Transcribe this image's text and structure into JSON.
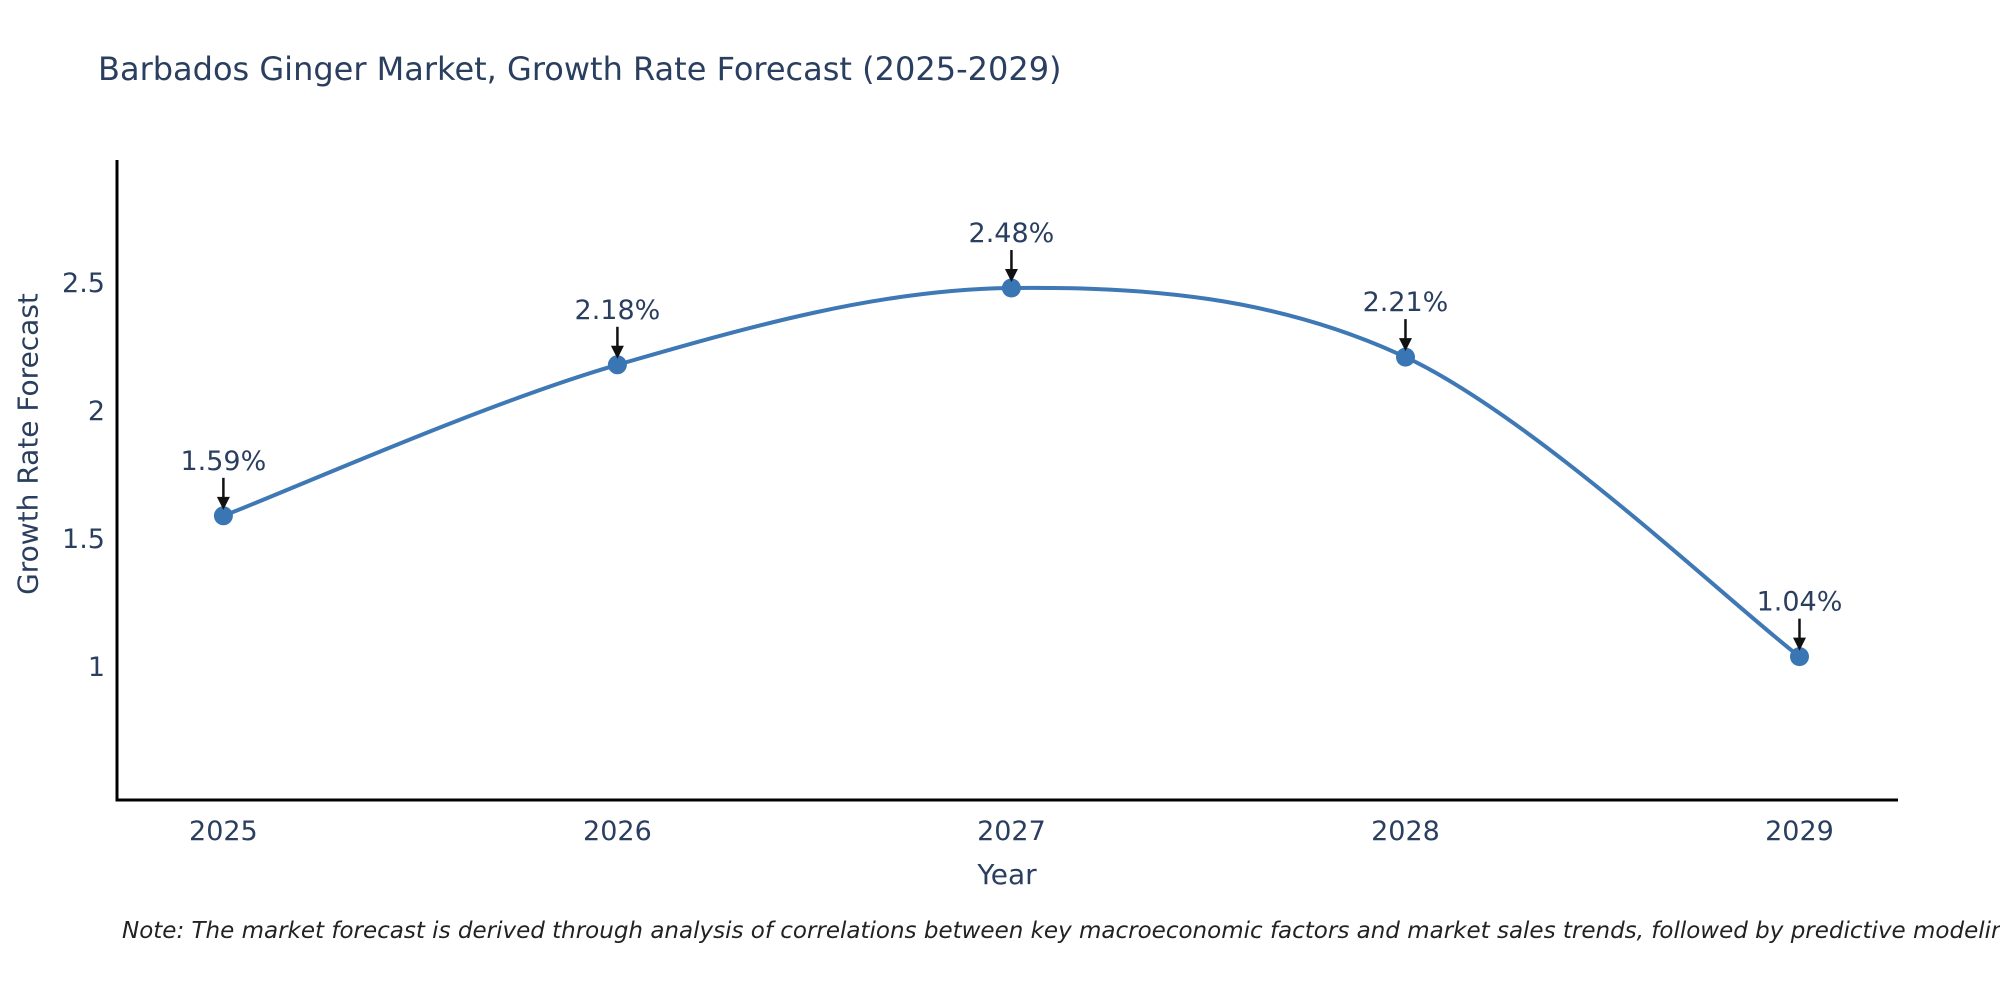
{
  "chart_data": {
    "type": "line",
    "title": "Barbados Ginger Market, Growth Rate Forecast (2025-2029)",
    "xlabel": "Year",
    "ylabel": "Growth Rate Forecast",
    "x": [
      2025,
      2026,
      2027,
      2028,
      2029
    ],
    "values": [
      1.59,
      2.18,
      2.48,
      2.21,
      1.04
    ],
    "point_labels": [
      "1.59%",
      "2.18%",
      "2.48%",
      "2.21%",
      "1.04%"
    ],
    "x_tick_labels": [
      "2025",
      "2026",
      "2027",
      "2028",
      "2029"
    ],
    "y_ticks": [
      1,
      1.5,
      2,
      2.5
    ],
    "y_tick_labels": [
      "1",
      "1.5",
      "2",
      "2.5"
    ],
    "xlim": [
      2024.73,
      2029.25
    ],
    "ylim": [
      0.48,
      2.98
    ],
    "line_shape": "spline",
    "grid": false,
    "legend": false,
    "colors": {
      "line": "#3e78b5",
      "marker": "#3a76b4",
      "annotation_arrow": "#111111",
      "axis_line": "#000000",
      "text": "#2a3f5f",
      "note_text": "#222222",
      "background": "#ffffff"
    }
  },
  "note": {
    "text": "Note: The market forecast is derived through analysis of correlations between key macroeconomic factors and market sales trends, followed by predictive modeling to project future sales"
  }
}
